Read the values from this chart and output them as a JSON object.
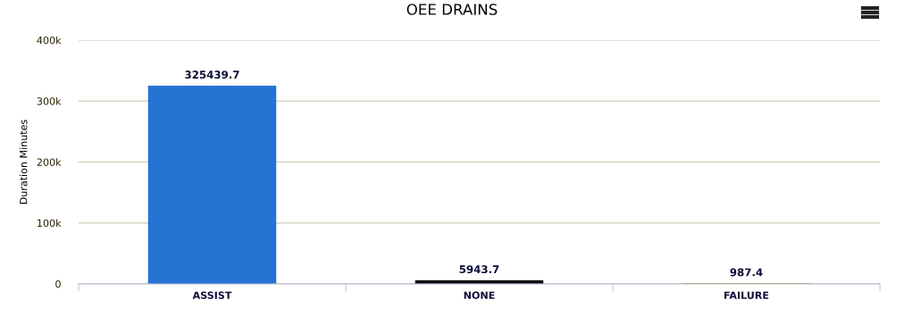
{
  "chart_data": {
    "type": "bar",
    "title": "OEE DRAINS",
    "ylabel": "Duration Minutes",
    "categories": [
      "ASSIST",
      "NONE",
      "FAILURE"
    ],
    "values": [
      325439.7,
      5943.7,
      987.4
    ],
    "colors": [
      "#2574d4",
      "#111111",
      "#8bbc21"
    ],
    "ylim": [
      0,
      400000
    ],
    "yticks": [
      0,
      {
        "value": 100000,
        "label": "100k"
      },
      {
        "value": 200000,
        "label": "200k"
      },
      {
        "value": 300000,
        "label": "300k"
      },
      {
        "value": 400000,
        "label": "400k"
      }
    ],
    "grid": "y",
    "data_labels": true,
    "legend": false
  }
}
